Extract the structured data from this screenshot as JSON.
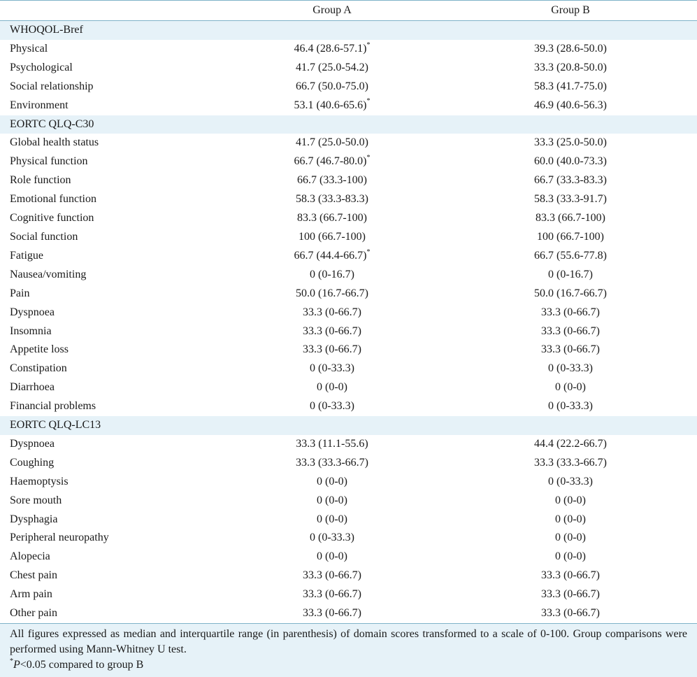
{
  "header": {
    "col1": "",
    "col2": "Group A",
    "col3": "Group B"
  },
  "sections": [
    {
      "title": "WHOQOL-Bref",
      "rows": [
        {
          "label": "Physical",
          "a": "46.4 (28.6-57.1)",
          "a_sig": "*",
          "b": "39.3 (28.6-50.0)",
          "b_sig": ""
        },
        {
          "label": "Psychological",
          "a": "41.7 (25.0-54.2)",
          "a_sig": "",
          "b": "33.3 (20.8-50.0)",
          "b_sig": ""
        },
        {
          "label": "Social relationship",
          "a": "66.7 (50.0-75.0)",
          "a_sig": "",
          "b": "58.3 (41.7-75.0)",
          "b_sig": ""
        },
        {
          "label": "Environment",
          "a": "53.1 (40.6-65.6)",
          "a_sig": "*",
          "b": "46.9 (40.6-56.3)",
          "b_sig": ""
        }
      ]
    },
    {
      "title": "EORTC QLQ-C30",
      "rows": [
        {
          "label": "Global health status",
          "a": "41.7 (25.0-50.0)",
          "a_sig": "",
          "b": "33.3 (25.0-50.0)",
          "b_sig": ""
        },
        {
          "label": "Physical function",
          "a": "66.7 (46.7-80.0)",
          "a_sig": "*",
          "b": "60.0 (40.0-73.3)",
          "b_sig": ""
        },
        {
          "label": "Role function",
          "a": "66.7 (33.3-100)",
          "a_sig": "",
          "b": "66.7 (33.3-83.3)",
          "b_sig": ""
        },
        {
          "label": "Emotional function",
          "a": "58.3 (33.3-83.3)",
          "a_sig": "",
          "b": "58.3 (33.3-91.7)",
          "b_sig": ""
        },
        {
          "label": "Cognitive function",
          "a": "83.3 (66.7-100)",
          "a_sig": "",
          "b": "83.3 (66.7-100)",
          "b_sig": ""
        },
        {
          "label": "Social function",
          "a": "100 (66.7-100)",
          "a_sig": "",
          "b": "100 (66.7-100)",
          "b_sig": ""
        },
        {
          "label": "Fatigue",
          "a": "66.7 (44.4-66.7)",
          "a_sig": "*",
          "b": "66.7 (55.6-77.8)",
          "b_sig": ""
        },
        {
          "label": "Nausea/vomiting",
          "a": "0 (0-16.7)",
          "a_sig": "",
          "b": "0 (0-16.7)",
          "b_sig": ""
        },
        {
          "label": "Pain",
          "a": "50.0 (16.7-66.7)",
          "a_sig": "",
          "b": "50.0 (16.7-66.7)",
          "b_sig": ""
        },
        {
          "label": "Dyspnoea",
          "a": "33.3 (0-66.7)",
          "a_sig": "",
          "b": "33.3 (0-66.7)",
          "b_sig": ""
        },
        {
          "label": "Insomnia",
          "a": "33.3 (0-66.7)",
          "a_sig": "",
          "b": "33.3 (0-66.7)",
          "b_sig": ""
        },
        {
          "label": "Appetite loss",
          "a": "33.3 (0-66.7)",
          "a_sig": "",
          "b": "33.3 (0-66.7)",
          "b_sig": ""
        },
        {
          "label": "Constipation",
          "a": "0 (0-33.3)",
          "a_sig": "",
          "b": "0 (0-33.3)",
          "b_sig": ""
        },
        {
          "label": "Diarrhoea",
          "a": "0 (0-0)",
          "a_sig": "",
          "b": "0 (0-0)",
          "b_sig": ""
        },
        {
          "label": "Financial problems",
          "a": "0 (0-33.3)",
          "a_sig": "",
          "b": "0 (0-33.3)",
          "b_sig": ""
        }
      ]
    },
    {
      "title": "EORTC QLQ-LC13",
      "rows": [
        {
          "label": "Dyspnoea",
          "a": "33.3 (11.1-55.6)",
          "a_sig": "",
          "b": "44.4 (22.2-66.7)",
          "b_sig": ""
        },
        {
          "label": "Coughing",
          "a": "33.3 (33.3-66.7)",
          "a_sig": "",
          "b": "33.3 (33.3-66.7)",
          "b_sig": ""
        },
        {
          "label": "Haemoptysis",
          "a": "0 (0-0)",
          "a_sig": "",
          "b": "0 (0-33.3)",
          "b_sig": ""
        },
        {
          "label": "Sore mouth",
          "a": "0 (0-0)",
          "a_sig": "",
          "b": "0 (0-0)",
          "b_sig": ""
        },
        {
          "label": "Dysphagia",
          "a": "0 (0-0)",
          "a_sig": "",
          "b": "0 (0-0)",
          "b_sig": ""
        },
        {
          "label": "Peripheral neuropathy",
          "a": "0 (0-33.3)",
          "a_sig": "",
          "b": "0 (0-0)",
          "b_sig": ""
        },
        {
          "label": "Alopecia",
          "a": "0 (0-0)",
          "a_sig": "",
          "b": "0 (0-0)",
          "b_sig": ""
        },
        {
          "label": "Chest pain",
          "a": "33.3 (0-66.7)",
          "a_sig": "",
          "b": "33.3 (0-66.7)",
          "b_sig": ""
        },
        {
          "label": "Arm pain",
          "a": "33.3 (0-66.7)",
          "a_sig": "",
          "b": "33.3 (0-66.7)",
          "b_sig": ""
        },
        {
          "label": "Other pain",
          "a": "33.3 (0-66.7)",
          "a_sig": "",
          "b": "33.3 (0-66.7)",
          "b_sig": ""
        }
      ]
    }
  ],
  "footnote": {
    "text": "All figures expressed as median and interquartile range (in parenthesis) of domain scores transformed to a scale of 0-100. Group comparisons were performed using Mann-Whitney U test.",
    "sig_mark": "*",
    "sig_p": "P",
    "sig_text": "<0.05 compared to group B"
  },
  "colors": {
    "section_bg": "#e6f2f8",
    "rule": "#7fb3c8"
  }
}
